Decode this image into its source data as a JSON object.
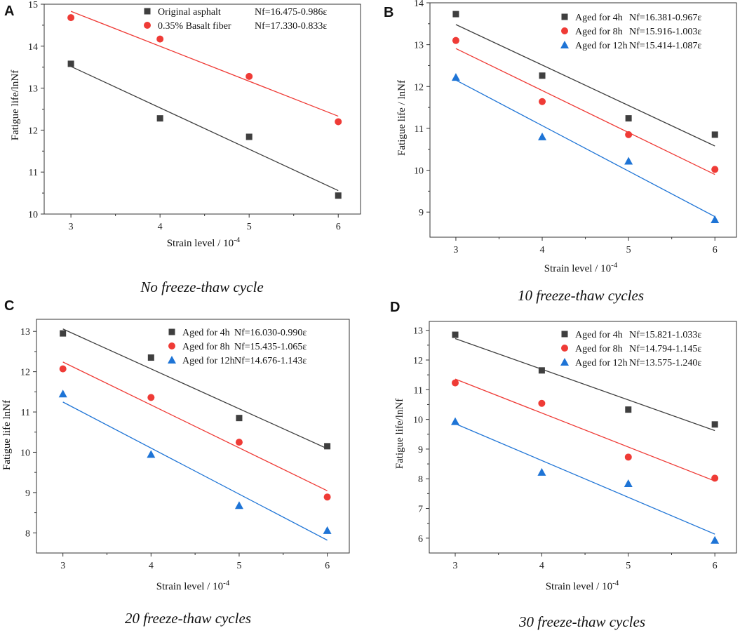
{
  "colors": {
    "axis": "#333333",
    "series_black": "#3f3f3f",
    "series_red": "#ef3b36",
    "series_blue": "#1e74d6",
    "fit_black": "#333333",
    "fit_red": "#ef3b36",
    "fit_blue": "#1e74d6"
  },
  "chart_data": [
    {
      "panel_label": "A",
      "type": "scatter",
      "caption": "No freeze-thaw cycle",
      "xlabel": "Strain level / 10",
      "xlabel_sup": "-4",
      "ylabel": "Fatigue life/lnNf",
      "xlim": [
        2.7,
        6.25
      ],
      "ylim": [
        10,
        15
      ],
      "xticks": [
        3,
        4,
        5,
        6
      ],
      "yticks": [
        10,
        11,
        12,
        13,
        14,
        15
      ],
      "legend_location": "top-right",
      "series": [
        {
          "name": "Original asphalt",
          "equation": "Nf=16.475-0.986ε",
          "marker": "square",
          "color": "#3f3f3f",
          "x": [
            3,
            4,
            5,
            6
          ],
          "y": [
            13.58,
            12.28,
            11.84,
            10.44
          ],
          "fit": {
            "intercept": 16.475,
            "slope": -0.986
          }
        },
        {
          "name": "0.35% Basalt fiber",
          "equation": "Nf=17.330-0.833ε",
          "marker": "circle",
          "color": "#ef3b36",
          "x": [
            3,
            4,
            5,
            6
          ],
          "y": [
            14.68,
            14.17,
            13.28,
            12.2
          ],
          "fit": {
            "intercept": 17.33,
            "slope": -0.833
          }
        }
      ]
    },
    {
      "panel_label": "B",
      "type": "scatter",
      "caption": "10 freeze-thaw cycles",
      "xlabel": "Strain level / 10",
      "xlabel_sup": "-4",
      "ylabel": "Fatigue life / lnNf",
      "xlim": [
        2.7,
        6.25
      ],
      "ylim": [
        8.4,
        14
      ],
      "xticks": [
        3,
        4,
        5,
        6
      ],
      "yticks": [
        9,
        10,
        11,
        12,
        13,
        14
      ],
      "legend_location": "top-right",
      "series": [
        {
          "name": "Aged for 4h",
          "equation": "Nf=16.381-0.967ε",
          "marker": "square",
          "color": "#3f3f3f",
          "x": [
            3,
            4,
            5,
            6
          ],
          "y": [
            13.73,
            12.26,
            11.24,
            10.85
          ],
          "fit": {
            "intercept": 16.381,
            "slope": -0.967
          }
        },
        {
          "name": "Aged for 8h",
          "equation": "Nf=15.916-1.003ε",
          "marker": "circle",
          "color": "#ef3b36",
          "x": [
            3,
            4,
            5,
            6
          ],
          "y": [
            13.1,
            11.64,
            10.85,
            10.02
          ],
          "fit": {
            "intercept": 15.916,
            "slope": -1.003
          }
        },
        {
          "name": "Aged for 12h",
          "equation": "Nf=15.414-1.087ε",
          "marker": "triangle",
          "color": "#1e74d6",
          "x": [
            3,
            4,
            5,
            6
          ],
          "y": [
            12.22,
            10.8,
            10.22,
            8.82
          ],
          "fit": {
            "intercept": 15.414,
            "slope": -1.087
          }
        }
      ]
    },
    {
      "panel_label": "C",
      "type": "scatter",
      "caption": "20 freeze-thaw cycles",
      "xlabel": "Strain level / 10",
      "xlabel_sup": "-4",
      "ylabel": "Fatigue life lnNf",
      "xlim": [
        2.7,
        6.25
      ],
      "ylim": [
        7.5,
        13.3
      ],
      "xticks": [
        3,
        4,
        5,
        6
      ],
      "yticks": [
        8,
        9,
        10,
        11,
        12,
        13
      ],
      "legend_location": "top-right",
      "series": [
        {
          "name": "Aged for 4h",
          "equation": "Nf=16.030-0.990ε",
          "marker": "square",
          "color": "#3f3f3f",
          "x": [
            3,
            4,
            5,
            6
          ],
          "y": [
            12.95,
            12.35,
            10.85,
            10.15
          ],
          "fit": {
            "intercept": 16.03,
            "slope": -0.99
          }
        },
        {
          "name": "Aged for 8h",
          "equation": "Nf=15.435-1.065ε",
          "marker": "circle",
          "color": "#ef3b36",
          "x": [
            3,
            4,
            5,
            6
          ],
          "y": [
            12.07,
            11.36,
            10.25,
            8.89
          ],
          "fit": {
            "intercept": 15.435,
            "slope": -1.065
          }
        },
        {
          "name": "Aged for 12h",
          "equation": "Nf=14.676-1.143ε",
          "marker": "triangle",
          "color": "#1e74d6",
          "x": [
            3,
            4,
            5,
            6
          ],
          "y": [
            11.45,
            9.95,
            8.68,
            8.06
          ],
          "fit": {
            "intercept": 14.676,
            "slope": -1.143
          }
        }
      ]
    },
    {
      "panel_label": "D",
      "type": "scatter",
      "caption": "30 freeze-thaw cycles",
      "xlabel": "Strain level / 10",
      "xlabel_sup": "-4",
      "ylabel": "Fatigue life/lnNf",
      "xlim": [
        2.7,
        6.25
      ],
      "ylim": [
        5.5,
        13.3
      ],
      "xticks": [
        3,
        4,
        5,
        6
      ],
      "yticks": [
        6,
        7,
        8,
        9,
        10,
        11,
        12,
        13
      ],
      "legend_location": "top-right",
      "series": [
        {
          "name": "Aged for 4h",
          "equation": "Nf=15.821-1.033ε",
          "marker": "square",
          "color": "#3f3f3f",
          "x": [
            3,
            4,
            5,
            6
          ],
          "y": [
            12.85,
            11.65,
            10.33,
            9.83
          ],
          "fit": {
            "intercept": 15.821,
            "slope": -1.033
          }
        },
        {
          "name": "Aged for 8h",
          "equation": "Nf=14.794-1.145ε",
          "marker": "circle",
          "color": "#ef3b36",
          "x": [
            3,
            4,
            5,
            6
          ],
          "y": [
            11.23,
            10.54,
            8.73,
            8.02
          ],
          "fit": {
            "intercept": 14.794,
            "slope": -1.145
          }
        },
        {
          "name": "Aged for 12h",
          "equation": "Nf=13.575-1.240ε",
          "marker": "triangle",
          "color": "#1e74d6",
          "x": [
            3,
            4,
            5,
            6
          ],
          "y": [
            9.93,
            8.22,
            7.84,
            5.93
          ],
          "fit": {
            "intercept": 13.575,
            "slope": -1.24
          }
        }
      ]
    }
  ]
}
